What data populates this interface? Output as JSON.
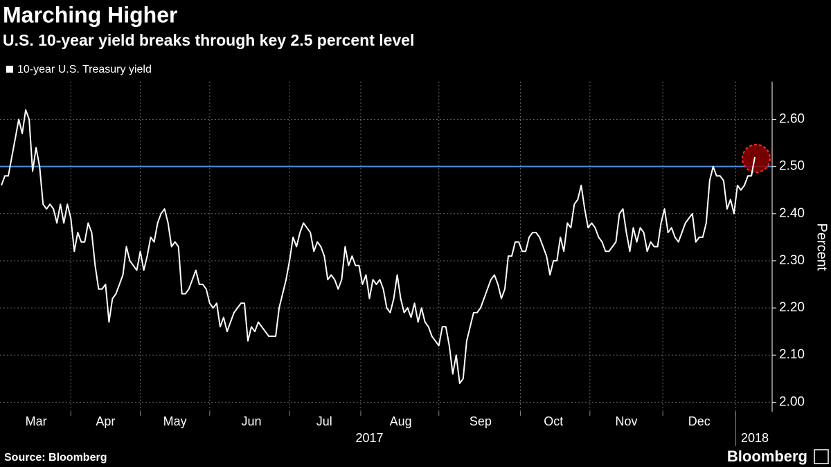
{
  "chart_data": {
    "type": "line",
    "title": "Marching Higher",
    "subtitle": "U.S. 10-year yield breaks through key 2.5 percent level",
    "y_axis_label": "Percent",
    "source": "Source: Bloomberg",
    "brand": "Bloomberg",
    "grid": true,
    "ylim": [
      1.98,
      2.68
    ],
    "yticks": [
      {
        "value": 2.0,
        "label": "2.00"
      },
      {
        "value": 2.1,
        "label": "2.10"
      },
      {
        "value": 2.2,
        "label": "2.20"
      },
      {
        "value": 2.3,
        "label": "2.30"
      },
      {
        "value": 2.4,
        "label": "2.40"
      },
      {
        "value": 2.5,
        "label": "2.50"
      },
      {
        "value": 2.6,
        "label": "2.60"
      }
    ],
    "reference_line": {
      "value": 2.5,
      "color": "#4a90e2"
    },
    "categories": [
      null,
      null,
      null,
      null,
      null,
      null,
      null,
      null,
      null,
      null,
      "Mar",
      null,
      null,
      null,
      null,
      null,
      null,
      null,
      null,
      null,
      null,
      null,
      null,
      null,
      null,
      null,
      null,
      null,
      null,
      null,
      "Apr",
      null,
      null,
      null,
      null,
      null,
      null,
      null,
      null,
      null,
      null,
      null,
      null,
      null,
      null,
      null,
      null,
      null,
      null,
      null,
      "May",
      null,
      null,
      null,
      null,
      null,
      null,
      null,
      null,
      null,
      null,
      null,
      null,
      null,
      null,
      null,
      null,
      null,
      null,
      null,
      null,
      null,
      "Jun",
      null,
      null,
      null,
      null,
      null,
      null,
      null,
      null,
      null,
      null,
      null,
      null,
      null,
      null,
      null,
      null,
      null,
      null,
      null,
      null,
      "Jul",
      null,
      null,
      null,
      null,
      null,
      null,
      null,
      null,
      null,
      null,
      null,
      null,
      null,
      null,
      null,
      null,
      null,
      null,
      null,
      null,
      null,
      "Aug",
      null,
      null,
      null,
      null,
      null,
      null,
      null,
      null,
      null,
      null,
      null,
      null,
      null,
      null,
      null,
      null,
      null,
      null,
      null,
      null,
      null,
      null,
      "Sep",
      null,
      null,
      null,
      null,
      null,
      null,
      null,
      null,
      null,
      null,
      null,
      null,
      null,
      null,
      null,
      null,
      null,
      null,
      null,
      null,
      "Oct",
      null,
      null,
      null,
      null,
      null,
      null,
      null,
      null,
      null,
      null,
      null,
      null,
      null,
      null,
      null,
      null,
      null,
      null,
      null,
      null,
      "Nov",
      null,
      null,
      null,
      null,
      null,
      null,
      null,
      null,
      null,
      null,
      null,
      null,
      null,
      null,
      null,
      null,
      null,
      null,
      null,
      null,
      "Dec",
      null,
      null,
      null,
      null,
      null,
      null,
      null,
      null,
      null,
      null,
      null,
      null,
      null,
      null,
      null,
      null
    ],
    "year_categories": [
      null,
      null,
      null,
      null,
      null,
      null,
      null,
      null,
      null,
      null,
      null,
      null,
      null,
      null,
      null,
      null,
      null,
      null,
      null,
      null,
      null,
      null,
      null,
      null,
      null,
      null,
      null,
      null,
      null,
      null,
      null,
      null,
      null,
      null,
      null,
      null,
      null,
      null,
      null,
      null,
      null,
      null,
      null,
      null,
      null,
      null,
      null,
      null,
      null,
      null,
      null,
      null,
      null,
      null,
      null,
      null,
      null,
      null,
      null,
      null,
      null,
      null,
      null,
      null,
      null,
      null,
      null,
      null,
      null,
      null,
      null,
      null,
      null,
      null,
      null,
      null,
      null,
      null,
      null,
      null,
      null,
      null,
      null,
      null,
      null,
      null,
      null,
      null,
      null,
      null,
      null,
      null,
      null,
      null,
      null,
      null,
      null,
      null,
      null,
      null,
      null,
      null,
      null,
      null,
      null,
      null,
      "2017",
      null,
      null,
      null,
      null,
      null,
      null,
      null,
      null,
      null,
      null,
      null,
      null,
      null,
      null,
      null,
      null,
      null,
      null,
      null,
      null,
      null,
      null,
      null,
      null,
      null,
      null,
      null,
      null,
      null,
      null,
      null,
      null,
      null,
      null,
      null,
      null,
      null,
      null,
      null,
      null,
      null,
      null,
      null,
      null,
      null,
      null,
      null,
      null,
      null,
      null,
      null,
      null,
      null,
      null,
      null,
      null,
      null,
      null,
      null,
      null,
      null,
      null,
      null,
      null,
      null,
      null,
      null,
      null,
      null,
      null,
      null,
      null,
      null,
      null,
      null,
      null,
      null,
      null,
      null,
      null,
      null,
      null,
      null,
      null,
      null,
      null,
      null,
      null,
      null,
      null,
      null,
      null,
      null,
      null,
      null,
      null,
      null,
      null,
      null,
      null,
      null,
      null,
      null,
      null,
      null,
      null,
      null,
      null,
      null,
      null,
      "2018"
    ],
    "series": [
      {
        "name": "10-year U.S. Treasury yield",
        "color": "#ffffff",
        "values": [
          2.46,
          2.48,
          2.48,
          2.52,
          2.56,
          2.6,
          2.57,
          2.62,
          2.6,
          2.49,
          2.54,
          2.5,
          2.42,
          2.41,
          2.42,
          2.41,
          2.38,
          2.42,
          2.38,
          2.42,
          2.39,
          2.32,
          2.36,
          2.34,
          2.34,
          2.38,
          2.36,
          2.29,
          2.24,
          2.24,
          2.25,
          2.17,
          2.22,
          2.23,
          2.25,
          2.27,
          2.33,
          2.3,
          2.29,
          2.28,
          2.32,
          2.28,
          2.31,
          2.35,
          2.34,
          2.38,
          2.4,
          2.41,
          2.38,
          2.33,
          2.34,
          2.33,
          2.23,
          2.23,
          2.24,
          2.26,
          2.28,
          2.25,
          2.25,
          2.24,
          2.21,
          2.2,
          2.21,
          2.16,
          2.18,
          2.15,
          2.17,
          2.19,
          2.2,
          2.21,
          2.21,
          2.13,
          2.16,
          2.15,
          2.17,
          2.16,
          2.15,
          2.14,
          2.14,
          2.14,
          2.2,
          2.23,
          2.26,
          2.3,
          2.35,
          2.33,
          2.36,
          2.38,
          2.37,
          2.36,
          2.32,
          2.34,
          2.33,
          2.31,
          2.26,
          2.27,
          2.26,
          2.24,
          2.26,
          2.33,
          2.29,
          2.31,
          2.29,
          2.29,
          2.25,
          2.27,
          2.22,
          2.26,
          2.25,
          2.26,
          2.24,
          2.2,
          2.19,
          2.22,
          2.27,
          2.22,
          2.19,
          2.2,
          2.18,
          2.21,
          2.17,
          2.2,
          2.17,
          2.16,
          2.14,
          2.13,
          2.12,
          2.16,
          2.16,
          2.12,
          2.06,
          2.1,
          2.04,
          2.05,
          2.13,
          2.16,
          2.19,
          2.19,
          2.2,
          2.22,
          2.24,
          2.26,
          2.27,
          2.25,
          2.22,
          2.24,
          2.31,
          2.31,
          2.34,
          2.34,
          2.32,
          2.32,
          2.35,
          2.36,
          2.36,
          2.35,
          2.33,
          2.31,
          2.27,
          2.3,
          2.3,
          2.35,
          2.32,
          2.38,
          2.37,
          2.42,
          2.43,
          2.46,
          2.41,
          2.37,
          2.38,
          2.37,
          2.35,
          2.34,
          2.32,
          2.32,
          2.33,
          2.34,
          2.4,
          2.41,
          2.36,
          2.32,
          2.37,
          2.34,
          2.37,
          2.36,
          2.32,
          2.34,
          2.33,
          2.33,
          2.38,
          2.41,
          2.36,
          2.37,
          2.35,
          2.34,
          2.36,
          2.38,
          2.39,
          2.4,
          2.34,
          2.35,
          2.35,
          2.38,
          2.47,
          2.5,
          2.48,
          2.48,
          2.47,
          2.41,
          2.43,
          2.4,
          2.46,
          2.45,
          2.46,
          2.48,
          2.48,
          2.52
        ]
      }
    ]
  }
}
